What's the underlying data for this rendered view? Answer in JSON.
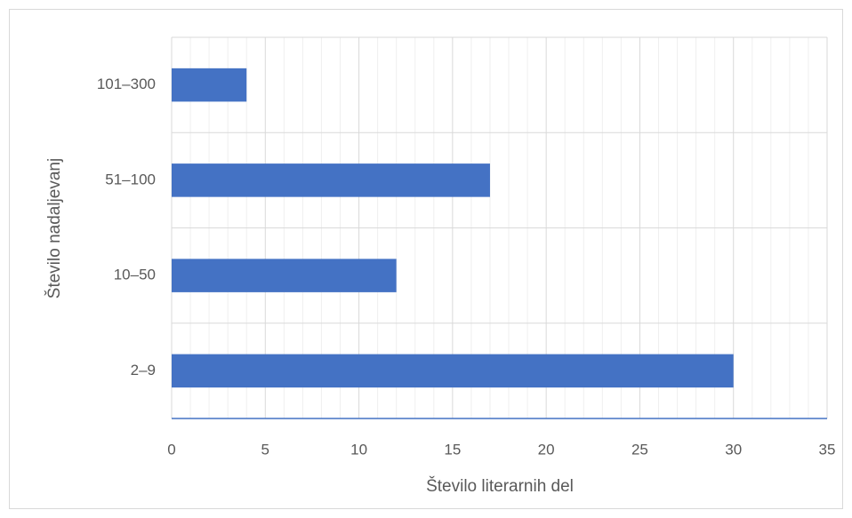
{
  "chart_data": {
    "type": "bar",
    "orientation": "horizontal",
    "categories": [
      "2–9",
      "10–50",
      "51–100",
      "101–300"
    ],
    "values": [
      30,
      12,
      17,
      4
    ],
    "color": "#4472c4",
    "xlim": [
      0,
      35
    ],
    "xticks": [
      0,
      5,
      10,
      15,
      20,
      25,
      30,
      35
    ],
    "grid": true,
    "minor_grid": true,
    "xlabel": "Število literarnih del",
    "ylabel": "Število nadaljevanj"
  }
}
